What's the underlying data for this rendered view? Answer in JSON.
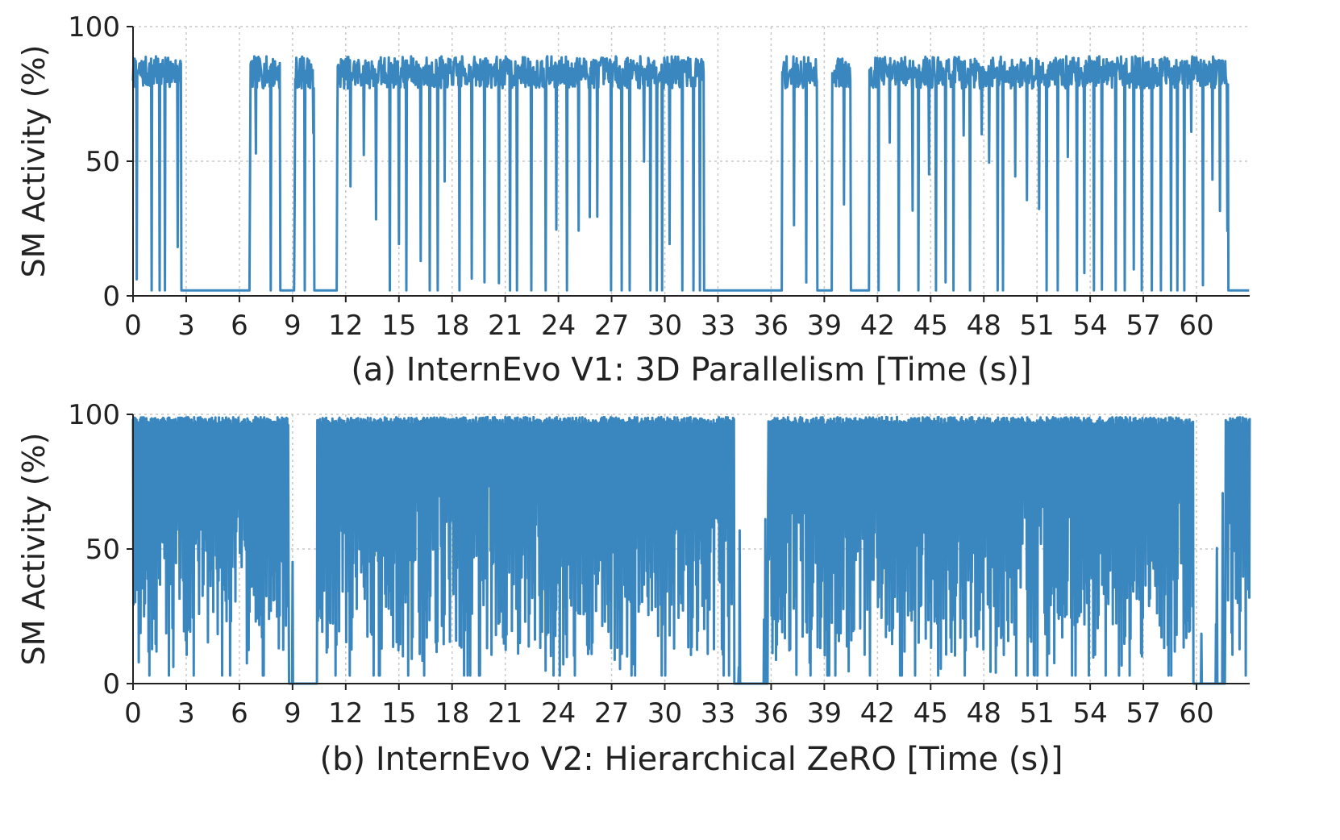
{
  "chart_data": [
    {
      "type": "line",
      "caption": "(a) InternEvo V1: 3D Parallelism [Time (s)]",
      "xlabel": "Time (s)",
      "ylabel": "SM Activity (%)",
      "xlim": [
        0,
        63
      ],
      "ylim": [
        0,
        100
      ],
      "xticks": [
        0,
        3,
        6,
        9,
        12,
        15,
        18,
        21,
        24,
        27,
        30,
        33,
        36,
        39,
        42,
        45,
        48,
        51,
        54,
        57,
        60
      ],
      "yticks": [
        0,
        50,
        100
      ],
      "grid": true,
      "color": "#3a87c0",
      "profile": {
        "high_level": 83,
        "high_jitter": 6,
        "low_level": 2,
        "idle_periods": [
          [
            2.7,
            6.6
          ],
          [
            8.3,
            9.1
          ],
          [
            10.2,
            11.5
          ],
          [
            32.2,
            36.6
          ],
          [
            38.6,
            39.4
          ],
          [
            40.5,
            41.5
          ],
          [
            61.8,
            63
          ]
        ],
        "busy_periods": [
          [
            0,
            2.7
          ],
          [
            6.6,
            8.3
          ],
          [
            9.1,
            10.2
          ],
          [
            11.5,
            32.2
          ],
          [
            36.6,
            38.6
          ],
          [
            39.4,
            40.5
          ],
          [
            41.5,
            61.8
          ]
        ],
        "dip_spacing_s": 0.55,
        "dip_level": 2
      }
    },
    {
      "type": "line",
      "caption": "(b) InternEvo V2: Hierarchical ZeRO [Time (s)]",
      "xlabel": "Time (s)",
      "ylabel": "SM Activity (%)",
      "xlim": [
        0,
        63
      ],
      "ylim": [
        0,
        100
      ],
      "xticks": [
        0,
        3,
        6,
        9,
        12,
        15,
        18,
        21,
        24,
        27,
        30,
        33,
        36,
        39,
        42,
        45,
        48,
        51,
        54,
        57,
        60
      ],
      "yticks": [
        0,
        50,
        100
      ],
      "grid": true,
      "color": "#3a87c0",
      "profile": {
        "high_level": 99,
        "busy_periods": [
          [
            0,
            8.8
          ],
          [
            10.4,
            33.9
          ],
          [
            35.8,
            59.8
          ],
          [
            61.6,
            63
          ]
        ],
        "idle_periods": [
          [
            8.8,
            10.4
          ],
          [
            33.9,
            35.8
          ],
          [
            59.8,
            61.6
          ]
        ],
        "low_mean": 45,
        "low_spread": 35,
        "idle_level": 0
      }
    }
  ]
}
